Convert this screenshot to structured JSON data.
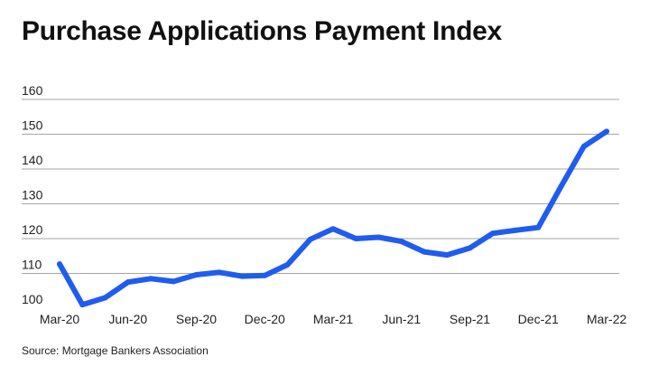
{
  "chart_data": {
    "type": "line",
    "title": "Purchase Applications Payment Index",
    "source": "Source: Mortgage Bankers Association",
    "xlabel": "",
    "ylabel": "",
    "categories": [
      "Mar-20",
      "Apr-20",
      "May-20",
      "Jun-20",
      "Jul-20",
      "Aug-20",
      "Sep-20",
      "Oct-20",
      "Nov-20",
      "Dec-20",
      "Jan-21",
      "Feb-21",
      "Mar-21",
      "Apr-21",
      "May-21",
      "Jun-21",
      "Jul-21",
      "Aug-21",
      "Sep-21",
      "Oct-21",
      "Nov-21",
      "Dec-21",
      "Jan-22",
      "Feb-22",
      "Mar-22"
    ],
    "x_tick_labels": [
      "Mar-20",
      "Jun-20",
      "Sep-20",
      "Dec-20",
      "Mar-21",
      "Jun-21",
      "Sep-21",
      "Dec-21",
      "Mar-22"
    ],
    "y_tick_labels": [
      "160",
      "150",
      "140",
      "130",
      "120",
      "110",
      "100"
    ],
    "y_ticks": [
      160,
      150,
      140,
      130,
      120,
      110,
      100
    ],
    "ylim": [
      100,
      160
    ],
    "grid": true,
    "series": [
      {
        "values": [
          112.7,
          101.0,
          103.0,
          107.5,
          108.5,
          107.7,
          109.6,
          110.3,
          109.2,
          109.4,
          112.5,
          119.8,
          122.8,
          120.0,
          120.4,
          119.2,
          116.2,
          115.3,
          117.3,
          121.5,
          122.4,
          123.2,
          135.0,
          146.5,
          150.8
        ],
        "color": "#1f5cf0"
      }
    ]
  }
}
